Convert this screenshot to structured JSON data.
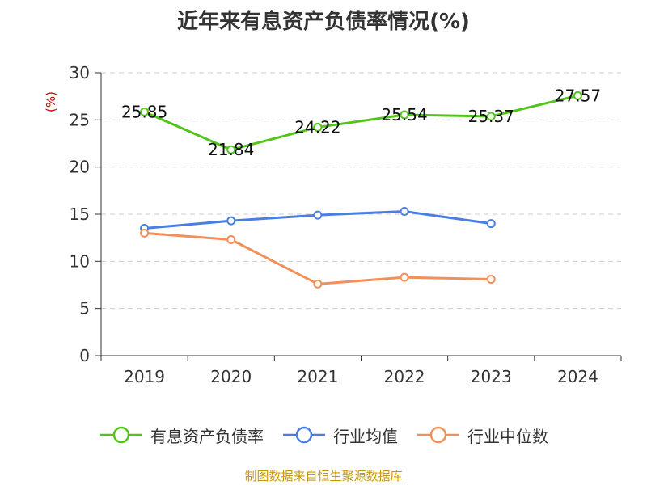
{
  "title": "近年来有息资产负债率情况(%)",
  "source": "制图数据来自恒生聚源数据库",
  "colors": {
    "axis": "#333333",
    "grid": "#cccccc",
    "unit": "#cc0000"
  },
  "chart_data": {
    "type": "line",
    "title": "近年来有息资产负债率情况(%)",
    "ylabel": "(%)",
    "categories": [
      "2019",
      "2020",
      "2021",
      "2022",
      "2023",
      "2024"
    ],
    "ylim": [
      0,
      30
    ],
    "yticks": [
      "0",
      "5",
      "10",
      "15",
      "20",
      "25",
      "30"
    ],
    "grid": true,
    "legend_position": "bottom",
    "series": [
      {
        "name": "有息资产负债率",
        "color": "#52c41a",
        "labeled": true,
        "values": [
          25.85,
          21.84,
          24.22,
          25.54,
          25.37,
          27.57
        ],
        "labels": [
          "25.85",
          "21.84",
          "24.22",
          "25.54",
          "25.37",
          "27.57"
        ]
      },
      {
        "name": "行业均值",
        "color": "#4a7fe0",
        "labeled": false,
        "values": [
          13.5,
          14.3,
          14.9,
          15.3,
          14.0,
          null
        ]
      },
      {
        "name": "行业中位数",
        "color": "#f2905a",
        "labeled": false,
        "values": [
          13.0,
          12.3,
          7.6,
          8.3,
          8.1,
          null
        ]
      }
    ]
  }
}
